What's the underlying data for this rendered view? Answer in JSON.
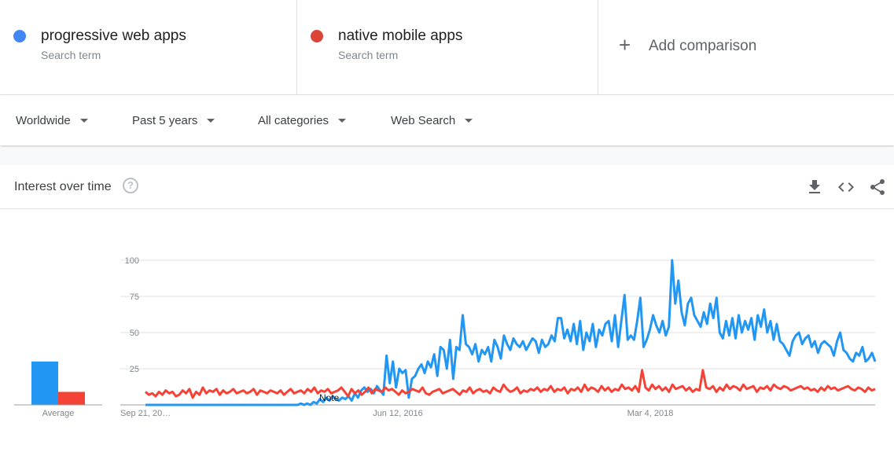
{
  "terms": [
    {
      "name": "progressive web apps",
      "sub": "Search term",
      "color": "#4285f4"
    },
    {
      "name": "native mobile apps",
      "sub": "Search term",
      "color": "#db4437"
    }
  ],
  "add_comparison": {
    "label": "Add comparison",
    "icon": "plus-icon"
  },
  "filters": {
    "region": "Worldwide",
    "period": "Past 5 years",
    "category": "All categories",
    "search_type": "Web Search"
  },
  "widget": {
    "title": "Interest over time",
    "icons": [
      "help-icon",
      "download-icon",
      "embed-icon",
      "share-icon"
    ]
  },
  "chart_data": {
    "type": "line",
    "title": "",
    "xlabel": "",
    "ylabel": "",
    "ylim": [
      0,
      100
    ],
    "yticks": [
      25,
      50,
      75,
      100
    ],
    "x_tick_labels": [
      "Sep 21, 20…",
      "Jun 12, 2016",
      "Mar 4, 2018"
    ],
    "note": "Note",
    "grid": true,
    "colors": {
      "progressive web apps": "#2196f3",
      "native mobile apps": "#f44336"
    },
    "averages": {
      "label": "Average",
      "series": [
        {
          "name": "progressive web apps",
          "value": 30
        },
        {
          "name": "native mobile apps",
          "value": 9
        }
      ]
    },
    "series": [
      {
        "name": "progressive web apps",
        "values": [
          0,
          0,
          0,
          0,
          0,
          0,
          0,
          0,
          0,
          0,
          0,
          0,
          0,
          0,
          0,
          0,
          0,
          0,
          0,
          0,
          0,
          0,
          0,
          0,
          0,
          0,
          0,
          0,
          0,
          0,
          0,
          0,
          0,
          0,
          0,
          0,
          0,
          0,
          0,
          0,
          0,
          0,
          0,
          0,
          0,
          0,
          0,
          0,
          0,
          1,
          0,
          1,
          0,
          2,
          1,
          4,
          2,
          5,
          3,
          6,
          4,
          3,
          5,
          4,
          6,
          3,
          8,
          5,
          10,
          12,
          9,
          11,
          8,
          13,
          10,
          7,
          34,
          15,
          30,
          12,
          25,
          22,
          24,
          5,
          18,
          20,
          25,
          28,
          22,
          30,
          26,
          35,
          20,
          40,
          38,
          25,
          45,
          18,
          40,
          38,
          62,
          42,
          40,
          35,
          42,
          30,
          38,
          35,
          40,
          30,
          45,
          40,
          32,
          48,
          42,
          38,
          46,
          42,
          40,
          44,
          38,
          42,
          46,
          44,
          36,
          45,
          40,
          42,
          48,
          44,
          60,
          60,
          46,
          52,
          44,
          56,
          42,
          58,
          38,
          50,
          44,
          56,
          40,
          52,
          48,
          56,
          58,
          44,
          62,
          40,
          58,
          76,
          45,
          48,
          45,
          58,
          74,
          40,
          45,
          52,
          62,
          55,
          50,
          58,
          48,
          54,
          100,
          70,
          86,
          64,
          55,
          70,
          74,
          62,
          58,
          54,
          64,
          56,
          70,
          60,
          74,
          50,
          46,
          58,
          48,
          60,
          46,
          62,
          50,
          58,
          52,
          60,
          45,
          62,
          54,
          66,
          50,
          58,
          45,
          56,
          44,
          42,
          38,
          34,
          44,
          48,
          50,
          42,
          46,
          48,
          40,
          44,
          36,
          42,
          44,
          42,
          40,
          34,
          44,
          50,
          38,
          36,
          32,
          30,
          36,
          34,
          40,
          30,
          32,
          36,
          30
        ]
      },
      {
        "name": "native mobile apps",
        "values": [
          9,
          7,
          8,
          6,
          9,
          7,
          10,
          8,
          9,
          6,
          7,
          10,
          8,
          11,
          5,
          9,
          7,
          12,
          8,
          10,
          9,
          11,
          7,
          10,
          8,
          9,
          11,
          8,
          9,
          10,
          8,
          9,
          11,
          7,
          10,
          9,
          8,
          10,
          9,
          8,
          10,
          7,
          9,
          11,
          8,
          9,
          10,
          8,
          11,
          9,
          12,
          8,
          10,
          9,
          11,
          8,
          9,
          10,
          12,
          9,
          6,
          11,
          8,
          10,
          7,
          9,
          12,
          8,
          11,
          10,
          9,
          12,
          10,
          11,
          9,
          7,
          10,
          8,
          9,
          11,
          10,
          9,
          12,
          8,
          7,
          9,
          10,
          11,
          8,
          9,
          10,
          11,
          9,
          7,
          10,
          9,
          12,
          8,
          10,
          11,
          9,
          10,
          8,
          12,
          10,
          9,
          14,
          11,
          9,
          10,
          12,
          8,
          10,
          9,
          11,
          10,
          12,
          9,
          11,
          10,
          13,
          9,
          11,
          10,
          12,
          8,
          11,
          10,
          12,
          9,
          14,
          10,
          12,
          11,
          9,
          13,
          10,
          12,
          9,
          11,
          10,
          14,
          11,
          12,
          10,
          13,
          9,
          24,
          12,
          10,
          14,
          11,
          13,
          10,
          12,
          9,
          14,
          11,
          12,
          13,
          10,
          12,
          9,
          11,
          10,
          24,
          12,
          11,
          13,
          9,
          12,
          10,
          14,
          11,
          13,
          12,
          10,
          14,
          11,
          12,
          13,
          9,
          12,
          11,
          13,
          10,
          14,
          12,
          11,
          13,
          12,
          10,
          11,
          12,
          13,
          11,
          12,
          10,
          11,
          9,
          12,
          10,
          13,
          11,
          12,
          10,
          11,
          12,
          13,
          11,
          10,
          12,
          11,
          9,
          12,
          10,
          11
        ]
      }
    ]
  }
}
